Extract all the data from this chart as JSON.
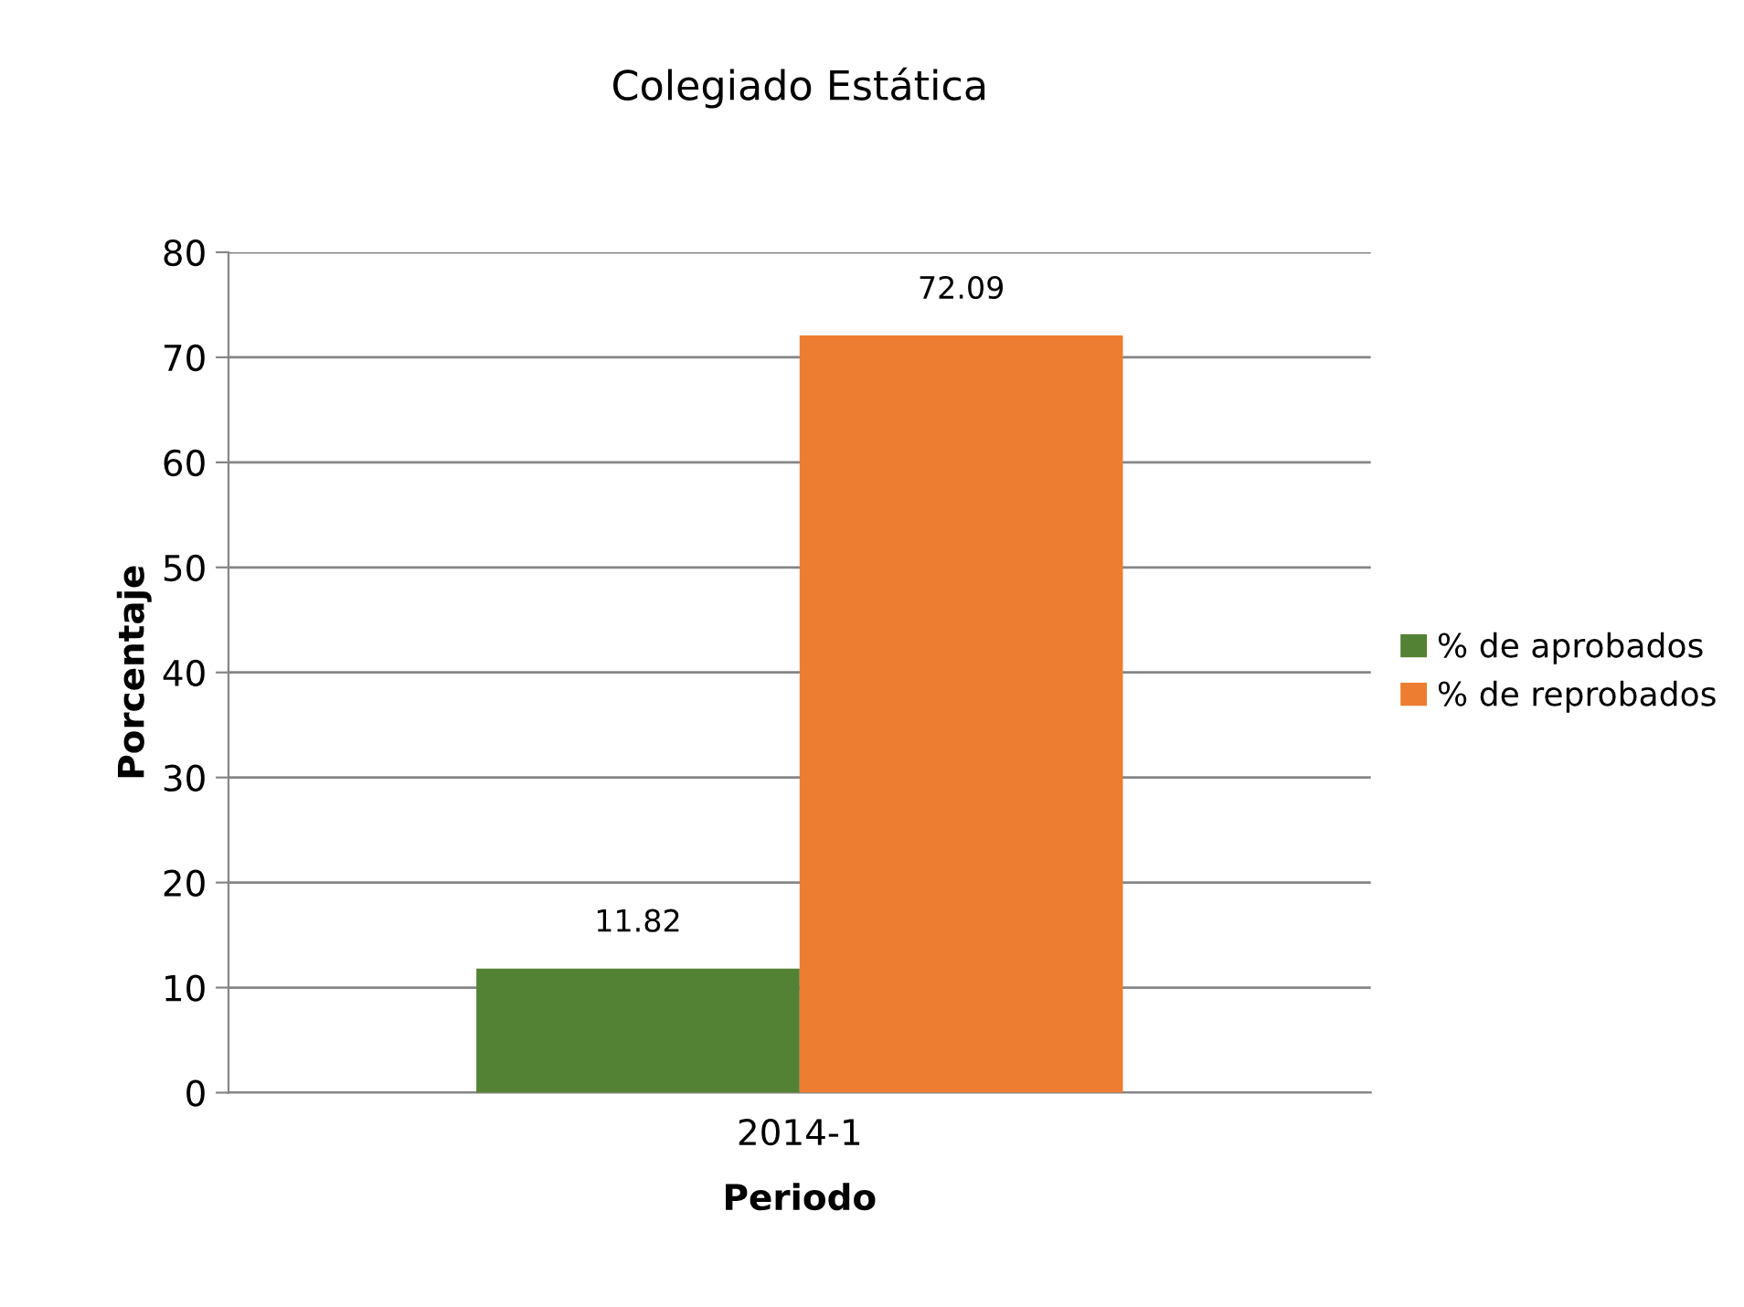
{
  "chart_data": {
    "type": "bar",
    "title": "Colegiado Estática",
    "xlabel": "Periodo",
    "ylabel": "Porcentaje",
    "categories": [
      "2014-1"
    ],
    "series": [
      {
        "name": "% de aprobados",
        "color": "#548235",
        "values": [
          11.82
        ]
      },
      {
        "name": "% de reprobados",
        "color": "#ed7d31",
        "values": [
          72.09
        ]
      }
    ],
    "ylim": [
      0,
      80
    ],
    "yticks": [
      0,
      10,
      20,
      30,
      40,
      50,
      60,
      70,
      80
    ],
    "grid": "y",
    "legend": "right",
    "data_labels": true
  }
}
